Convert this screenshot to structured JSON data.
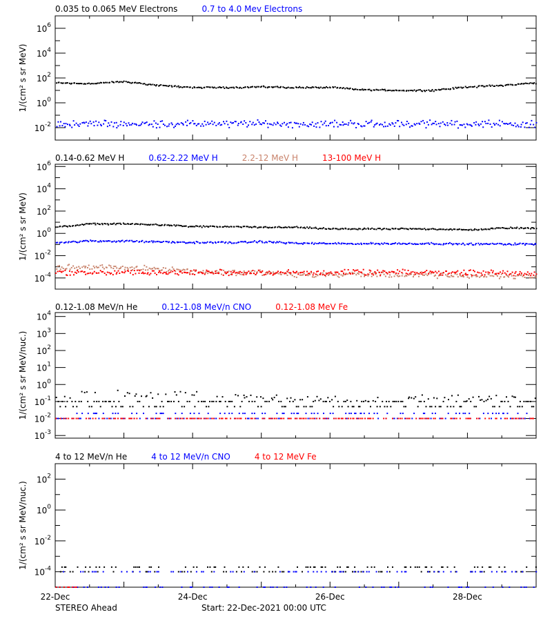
{
  "footer": {
    "spacecraft": "STEREO Ahead",
    "start": "Start: 22-Dec-2021 00:00 UTC"
  },
  "chart_data": [
    {
      "type": "scatter",
      "yscale": "log",
      "ylabel": "1/(cm² s sr MeV)",
      "ylim": [
        0.001,
        10000000
      ],
      "yticks": [
        "10^-2",
        "10^0",
        "10^2",
        "10^4",
        "10^6"
      ],
      "xlim": [
        "2021-12-22T00:00",
        "2021-12-29T00:00"
      ],
      "xtick_labels": [
        "22-Dec",
        "24-Dec",
        "26-Dec",
        "28-Dec"
      ],
      "x": [
        "2021-12-22T00:00",
        "2021-12-22T12:00",
        "2021-12-23T00:00",
        "2021-12-23T12:00",
        "2021-12-24T00:00",
        "2021-12-24T12:00",
        "2021-12-25T00:00",
        "2021-12-25T12:00",
        "2021-12-26T00:00",
        "2021-12-26T12:00",
        "2021-12-27T00:00",
        "2021-12-27T12:00",
        "2021-12-28T00:00",
        "2021-12-28T12:00",
        "2021-12-29T00:00"
      ],
      "series": [
        {
          "name": "0.035 to 0.065 MeV Electrons",
          "color": "#000000",
          "values": [
            40,
            35,
            50,
            25,
            17,
            17,
            19,
            17,
            17,
            11,
            10,
            10,
            19,
            25,
            40
          ],
          "scatter_decades": 0.08
        },
        {
          "name": "0.7 to 4.0 Mev Electrons",
          "color": "#0000ff",
          "values": [
            0.02,
            0.02,
            0.02,
            0.02,
            0.02,
            0.02,
            0.02,
            0.02,
            0.02,
            0.02,
            0.02,
            0.02,
            0.02,
            0.02,
            0.02
          ],
          "scatter_decades": 0.35
        }
      ]
    },
    {
      "type": "scatter",
      "yscale": "log",
      "ylabel": "1/(cm² s sr MeV)",
      "ylim": [
        1e-05,
        1600000
      ],
      "yticks": [
        "10^-4",
        "10^-2",
        "10^0",
        "10^2",
        "10^4",
        "10^6"
      ],
      "xlim": [
        "2021-12-22T00:00",
        "2021-12-29T00:00"
      ],
      "xtick_labels": [
        "22-Dec",
        "24-Dec",
        "26-Dec",
        "28-Dec"
      ],
      "x": [
        "2021-12-22T00:00",
        "2021-12-22T12:00",
        "2021-12-23T00:00",
        "2021-12-23T12:00",
        "2021-12-24T00:00",
        "2021-12-24T12:00",
        "2021-12-25T00:00",
        "2021-12-25T12:00",
        "2021-12-26T00:00",
        "2021-12-26T12:00",
        "2021-12-27T00:00",
        "2021-12-27T12:00",
        "2021-12-28T00:00",
        "2021-12-28T12:00",
        "2021-12-29T00:00"
      ],
      "series": [
        {
          "name": "0.14-0.62 MeV H",
          "color": "#000000",
          "values": [
            3.5,
            7,
            7,
            6,
            4,
            4,
            3.5,
            3.5,
            2.5,
            2.5,
            2.5,
            2.5,
            2,
            3,
            3
          ],
          "scatter_decades": 0.08
        },
        {
          "name": "0.62-2.22 MeV H",
          "color": "#0000ff",
          "values": [
            0.15,
            0.2,
            0.2,
            0.17,
            0.15,
            0.15,
            0.18,
            0.13,
            0.12,
            0.12,
            0.12,
            0.12,
            0.11,
            0.11,
            0.11
          ],
          "scatter_decades": 0.1
        },
        {
          "name": "2.2-12 MeV H",
          "color": "#c8826a",
          "values": [
            0.001,
            0.0009,
            0.0008,
            0.0007,
            0.0004,
            0.0003,
            0.0003,
            0.0002,
            0.0002,
            0.0002,
            0.00018,
            0.00018,
            0.00015,
            0.00015,
            0.00015
          ],
          "scatter_decades": 0.3
        },
        {
          "name": "13-100 MeV H",
          "color": "#ff0000",
          "values": [
            0.0003,
            0.0003,
            0.0003,
            0.0003,
            0.0003,
            0.0003,
            0.0003,
            0.0003,
            0.0003,
            0.0003,
            0.0003,
            0.0003,
            0.0003,
            0.0003,
            0.0003
          ],
          "scatter_decades": 0.3
        }
      ]
    },
    {
      "type": "scatter",
      "yscale": "log",
      "ylabel": "1/(cm² s sr MeV/nuc.)",
      "ylim": [
        0.0007,
        17000
      ],
      "yticks": [
        "10^-3",
        "10^-2",
        "10^-1",
        "10^0",
        "10^1",
        "10^2",
        "10^3",
        "10^4"
      ],
      "xlim": [
        "2021-12-22T00:00",
        "2021-12-29T00:00"
      ],
      "xtick_labels": [
        "22-Dec",
        "24-Dec",
        "26-Dec",
        "28-Dec"
      ],
      "x": [
        "2021-12-22T00:00",
        "2021-12-22T12:00",
        "2021-12-23T00:00",
        "2021-12-23T12:00",
        "2021-12-24T00:00",
        "2021-12-24T12:00",
        "2021-12-25T00:00",
        "2021-12-25T12:00",
        "2021-12-26T00:00",
        "2021-12-26T12:00",
        "2021-12-27T00:00",
        "2021-12-27T12:00",
        "2021-12-28T00:00",
        "2021-12-28T12:00",
        "2021-12-29T00:00"
      ],
      "series": [
        {
          "name": "0.12-1.08 MeV/n He",
          "color": "#000000",
          "values": [
            0.1,
            0.25,
            0.2,
            0.15,
            0.2,
            0.15,
            0.12,
            0.12,
            0.1,
            0.1,
            0.12,
            0.12,
            0.1,
            0.12,
            0.12
          ],
          "levels": [
            0.05,
            0.1
          ],
          "scatter_decades": 0.35
        },
        {
          "name": "0.12-1.08 MeV/n CNO",
          "color": "#0000ff",
          "values": [
            0.01,
            0.01,
            0.01,
            0.01,
            0.01,
            0.01,
            0.01,
            0.01,
            0.01,
            0.01,
            0.01,
            0.01,
            0.01,
            0.01,
            0.01
          ],
          "levels": [
            0.01,
            0.02
          ],
          "scatter_decades": 0
        },
        {
          "name": "0.12-1.08 MeV Fe",
          "color": "#ff0000",
          "values": [
            0.01,
            0.01,
            0.01,
            0.01,
            0.01,
            0.01,
            0.01,
            0.01,
            0.01,
            0.01,
            0.01,
            0.01,
            0.01,
            0.01,
            0.01
          ],
          "levels": [
            0.01
          ],
          "scatter_decades": 0
        }
      ]
    },
    {
      "type": "scatter",
      "yscale": "log",
      "ylabel": "1/(cm² s sr MeV/nuc.)",
      "ylim": [
        1e-05,
        1000
      ],
      "yticks": [
        "10^-4",
        "10^-2",
        "10^0",
        "10^2"
      ],
      "xlim": [
        "2021-12-22T00:00",
        "2021-12-29T00:00"
      ],
      "xtick_labels": [
        "22-Dec",
        "24-Dec",
        "26-Dec",
        "28-Dec"
      ],
      "x": [
        "2021-12-22T00:00",
        "2021-12-22T12:00",
        "2021-12-23T00:00",
        "2021-12-23T12:00",
        "2021-12-24T00:00",
        "2021-12-24T12:00",
        "2021-12-25T00:00",
        "2021-12-25T12:00",
        "2021-12-26T00:00",
        "2021-12-26T12:00",
        "2021-12-27T00:00",
        "2021-12-27T12:00",
        "2021-12-28T00:00",
        "2021-12-28T12:00",
        "2021-12-29T00:00"
      ],
      "series": [
        {
          "name": "4 to 12 MeV/n He",
          "color": "#000000",
          "values": [
            0.0001,
            0.0001,
            0.0001,
            0.0001,
            0.0001,
            0.0001,
            0.0001,
            0.0001,
            0.0001,
            0.0001,
            0.0001,
            0.0001,
            0.0001,
            0.0001,
            0.0001
          ],
          "levels": [
            0.0001,
            0.0002
          ],
          "scatter_decades": 0
        },
        {
          "name": "4 to 12 MeV/n CNO",
          "color": "#0000ff",
          "values": [
            0.0001,
            0.0001,
            0.0001,
            0.0001,
            0.0001,
            0.0001,
            0.0001,
            0.0001,
            0.0001,
            0.0001,
            0.0001,
            0.0001,
            0.0001,
            0.0001,
            0.0001
          ],
          "levels": [
            0.0001,
            1e-05
          ],
          "scatter_decades": 0
        },
        {
          "name": "4 to 12 MeV Fe",
          "color": "#ff0000",
          "values": [
            1e-05,
            null,
            null,
            null,
            null,
            null,
            null,
            null,
            null,
            null,
            null,
            null,
            null,
            null,
            null
          ],
          "levels": [
            1e-05
          ],
          "scatter_decades": 0
        }
      ]
    }
  ]
}
